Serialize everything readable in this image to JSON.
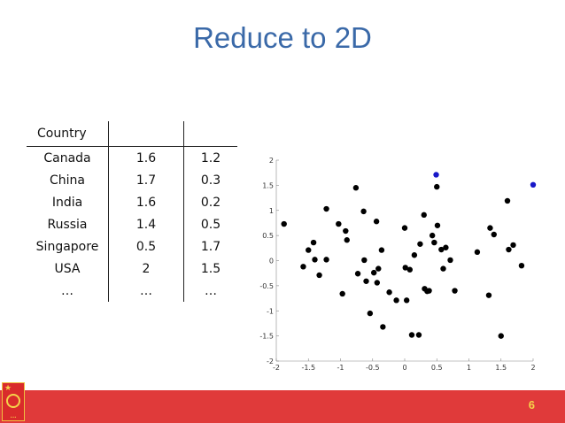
{
  "slide": {
    "title": "Reduce to 2D",
    "page_number": "6"
  },
  "table": {
    "header": "Country",
    "rows": [
      [
        "Canada",
        "1.6",
        "1.2"
      ],
      [
        "China",
        "1.7",
        "0.3"
      ],
      [
        "India",
        "1.6",
        "0.2"
      ],
      [
        "Russia",
        "1.4",
        "0.5"
      ],
      [
        "Singapore",
        "0.5",
        "1.7"
      ],
      [
        "USA",
        "2",
        "1.5"
      ],
      [
        "…",
        "…",
        "…"
      ]
    ]
  },
  "chart_data": {
    "type": "scatter",
    "title": "",
    "xlabel": "",
    "ylabel": "",
    "xlim": [
      -2,
      2
    ],
    "ylim": [
      -2,
      2
    ],
    "xticks": [
      "-2",
      "-1.5",
      "-1",
      "-0.5",
      "0",
      "0.5",
      "1",
      "1.5",
      "2"
    ],
    "yticks": [
      "2",
      "1.5",
      "1",
      "0.5",
      "0",
      "-0.5",
      "-1",
      "-1.5",
      "-2"
    ],
    "grid": false,
    "series": [
      {
        "color": "#000000",
        "points": [
          [
            -1.88,
            0.73
          ],
          [
            -1.58,
            -0.12
          ],
          [
            -1.5,
            0.21
          ],
          [
            -1.42,
            0.36
          ],
          [
            -1.4,
            0.02
          ],
          [
            -1.33,
            -0.29
          ],
          [
            -1.22,
            1.03
          ],
          [
            -1.22,
            0.02
          ],
          [
            -1.03,
            0.73
          ],
          [
            -0.97,
            -0.66
          ],
          [
            -0.92,
            0.59
          ],
          [
            -0.9,
            0.41
          ],
          [
            -0.76,
            1.45
          ],
          [
            -0.73,
            -0.26
          ],
          [
            -0.64,
            0.98
          ],
          [
            -0.63,
            0.01
          ],
          [
            -0.6,
            -0.41
          ],
          [
            -0.54,
            -1.05
          ],
          [
            -0.48,
            -0.24
          ],
          [
            -0.44,
            0.78
          ],
          [
            -0.43,
            -0.44
          ],
          [
            -0.41,
            -0.16
          ],
          [
            -0.36,
            0.21
          ],
          [
            -0.34,
            -1.32
          ],
          [
            -0.24,
            -0.63
          ],
          [
            -0.13,
            -0.79
          ],
          [
            0,
            0.65
          ],
          [
            0.01,
            -0.14
          ],
          [
            0.03,
            -0.79
          ],
          [
            0.08,
            -0.18
          ],
          [
            0.11,
            -1.48
          ],
          [
            0.15,
            0.11
          ],
          [
            0.22,
            -1.48
          ],
          [
            0.24,
            0.33
          ],
          [
            0.3,
            0.91
          ],
          [
            0.31,
            -0.56
          ],
          [
            0.35,
            -0.61
          ],
          [
            0.38,
            -0.6
          ],
          [
            0.43,
            0.5
          ],
          [
            0.46,
            0.36
          ],
          [
            0.5,
            1.47
          ],
          [
            0.51,
            0.7
          ],
          [
            0.57,
            0.22
          ],
          [
            0.6,
            -0.16
          ],
          [
            0.64,
            0.26
          ],
          [
            0.71,
            0.01
          ],
          [
            0.78,
            -0.6
          ],
          [
            1.13,
            0.17
          ],
          [
            1.31,
            -0.69
          ],
          [
            1.33,
            0.65
          ],
          [
            1.39,
            0.52
          ],
          [
            1.5,
            -1.5
          ],
          [
            1.6,
            1.19
          ],
          [
            1.62,
            0.22
          ],
          [
            1.69,
            0.31
          ],
          [
            1.82,
            -0.1
          ]
        ]
      },
      {
        "color": "#1818c8",
        "points": [
          [
            0.49,
            1.71
          ],
          [
            2.0,
            1.51
          ]
        ]
      }
    ]
  }
}
